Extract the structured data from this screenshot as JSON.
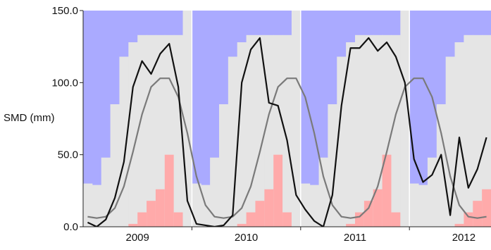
{
  "chart_data": {
    "type": "area",
    "title": "",
    "xlabel": "",
    "ylabel": "SMD (mm)",
    "ylim": [
      0,
      150
    ],
    "yticks": [
      0,
      50,
      100,
      150
    ],
    "ytick_labels": [
      "0.0",
      "50.0",
      "100.0",
      "150.0"
    ],
    "x_start": "2008-07",
    "x_end": "2012-03",
    "year_labels": [
      "2009",
      "2010",
      "2011",
      "2012"
    ],
    "year_label_months": [
      "2009-01",
      "2010-01",
      "2011-01",
      "2012-01"
    ],
    "year_separator_months": [
      "2009-07",
      "2010-07",
      "2011-07"
    ],
    "months": [
      "2008-07",
      "2008-08",
      "2008-09",
      "2008-10",
      "2008-11",
      "2008-12",
      "2009-01",
      "2009-02",
      "2009-03",
      "2009-04",
      "2009-05",
      "2009-06",
      "2009-07",
      "2009-08",
      "2009-09",
      "2009-10",
      "2009-11",
      "2009-12",
      "2010-01",
      "2010-02",
      "2010-03",
      "2010-04",
      "2010-05",
      "2010-06",
      "2010-07",
      "2010-08",
      "2010-09",
      "2010-10",
      "2010-11",
      "2010-12",
      "2011-01",
      "2011-02",
      "2011-03",
      "2011-04",
      "2011-05",
      "2011-06",
      "2011-07",
      "2011-08",
      "2011-09",
      "2011-10",
      "2011-11",
      "2011-12",
      "2012-01",
      "2012-02",
      "2012-03"
    ],
    "band_upper": [
      30,
      29,
      48,
      85,
      118,
      128,
      133,
      133,
      133,
      133,
      133,
      150,
      30,
      29,
      48,
      85,
      118,
      128,
      133,
      133,
      133,
      133,
      133,
      150,
      30,
      29,
      48,
      85,
      118,
      128,
      133,
      133,
      133,
      133,
      133,
      150,
      30,
      29,
      48,
      85,
      118,
      128,
      133,
      133,
      133
    ],
    "band_lower_pink": [
      0,
      0,
      0,
      0,
      0,
      2,
      10,
      18,
      26,
      50,
      10,
      0,
      0,
      0,
      0,
      0,
      0,
      2,
      10,
      18,
      26,
      50,
      10,
      0,
      0,
      0,
      0,
      0,
      0,
      2,
      10,
      18,
      26,
      50,
      10,
      0,
      0,
      0,
      0,
      0,
      0,
      2,
      10,
      18,
      26
    ],
    "series": [
      {
        "name": "",
        "color": "#111111",
        "values": [
          3,
          0,
          5,
          20,
          45,
          97,
          115,
          106,
          120,
          127,
          97,
          18,
          2,
          1,
          0,
          1,
          8,
          100,
          123,
          131,
          86,
          84,
          60,
          22,
          12,
          4,
          0,
          22,
          84,
          124,
          124,
          131,
          122,
          128,
          118,
          100,
          47,
          31,
          36,
          50,
          8,
          62,
          27,
          40,
          62
        ]
      },
      {
        "name": "",
        "color": "#7a7a7a",
        "values": [
          7,
          6,
          7,
          13,
          28,
          52,
          78,
          97,
          103,
          103,
          90,
          65,
          35,
          15,
          7,
          6,
          7,
          13,
          28,
          52,
          78,
          97,
          103,
          103,
          90,
          65,
          35,
          15,
          7,
          6,
          7,
          13,
          28,
          52,
          78,
          97,
          103,
          103,
          90,
          65,
          35,
          15,
          7,
          6,
          7
        ]
      }
    ],
    "colors": {
      "upper_fill": "#aaaaff",
      "middle_fill": "#e5e5e5",
      "lower_fill": "#ffaaaa",
      "separator": "#ffffff"
    },
    "grid": false,
    "legend": "none"
  }
}
